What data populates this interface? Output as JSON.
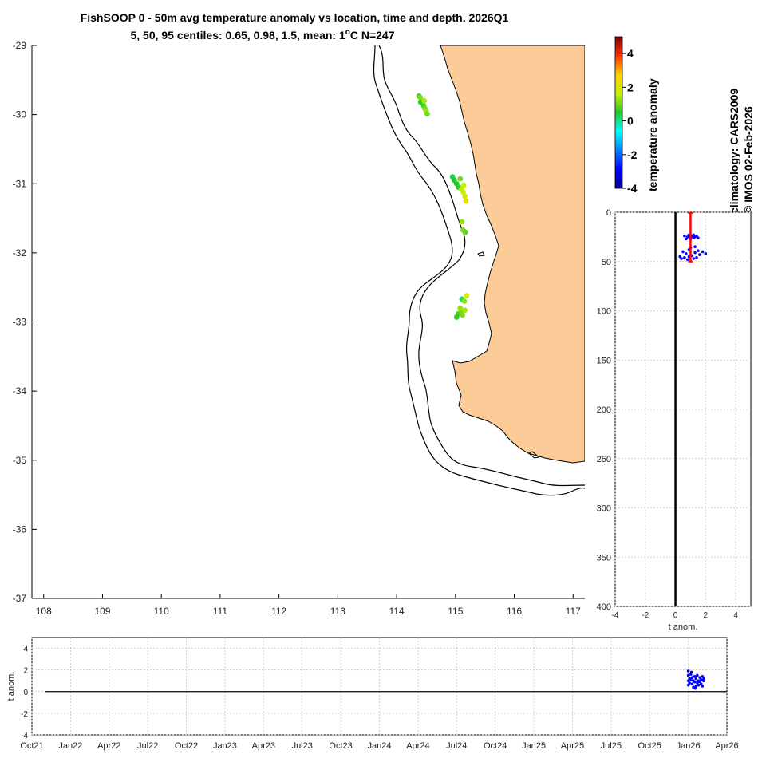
{
  "title": {
    "line1": "FishSOOP 0 - 50m avg temperature anomaly vs location, time and depth. 2026Q1",
    "line2_prefix": "5, 50, 95 centiles: 0.65, 0.98, 1.5, mean: 1",
    "line2_sup": "o",
    "line2_suffix": "C N=247"
  },
  "credits": {
    "climatology": "climatology: CARS2009",
    "copyright": "© IMOS 02-Feb-2026"
  },
  "colors": {
    "land": "#fbcb98",
    "coast": "#000000",
    "points": "#0000ff",
    "mean_line": "#ff0000",
    "grid": "#c8c8c8"
  },
  "chart_data": [
    {
      "type": "scatter",
      "name": "map",
      "xlabel": "",
      "ylabel": "",
      "xlim": [
        107.8,
        117.2
      ],
      "ylim": [
        -37,
        -29
      ],
      "xticks": [
        "108",
        "109",
        "110",
        "111",
        "112",
        "113",
        "114",
        "115",
        "116",
        "117"
      ],
      "yticks": [
        "-29",
        "-30",
        "-31",
        "-32",
        "-33",
        "-34",
        "-35",
        "-36",
        "-37"
      ],
      "points": [
        {
          "lon": 114.38,
          "lat": -29.73,
          "anom": 0.8
        },
        {
          "lon": 114.4,
          "lat": -29.75,
          "anom": 1.0
        },
        {
          "lon": 114.42,
          "lat": -29.79,
          "anom": 1.2
        },
        {
          "lon": 114.44,
          "lat": -29.83,
          "anom": 0.9
        },
        {
          "lon": 114.46,
          "lat": -29.87,
          "anom": 0.7
        },
        {
          "lon": 114.48,
          "lat": -29.91,
          "anom": 1.1
        },
        {
          "lon": 114.5,
          "lat": -29.95,
          "anom": 1.3
        },
        {
          "lon": 114.52,
          "lat": -29.99,
          "anom": 1.0
        },
        {
          "lon": 114.41,
          "lat": -29.82,
          "anom": 0.6
        },
        {
          "lon": 114.47,
          "lat": -29.8,
          "anom": 1.4
        },
        {
          "lon": 114.95,
          "lat": -30.9,
          "anom": 0.3
        },
        {
          "lon": 114.98,
          "lat": -30.95,
          "anom": 0.5
        },
        {
          "lon": 115.02,
          "lat": -31.0,
          "anom": 0.4
        },
        {
          "lon": 115.05,
          "lat": -31.05,
          "anom": 0.6
        },
        {
          "lon": 115.08,
          "lat": -30.93,
          "anom": 1.0
        },
        {
          "lon": 115.1,
          "lat": -31.08,
          "anom": 1.5
        },
        {
          "lon": 115.13,
          "lat": -31.12,
          "anom": 1.8
        },
        {
          "lon": 115.16,
          "lat": -31.18,
          "anom": 2.0
        },
        {
          "lon": 115.18,
          "lat": -31.25,
          "anom": 2.2
        },
        {
          "lon": 115.14,
          "lat": -31.02,
          "anom": 1.6
        },
        {
          "lon": 115.11,
          "lat": -31.55,
          "anom": 1.3
        },
        {
          "lon": 115.13,
          "lat": -31.67,
          "anom": 1.1
        },
        {
          "lon": 115.17,
          "lat": -31.7,
          "anom": 0.9
        },
        {
          "lon": 115.19,
          "lat": -32.62,
          "anom": 1.9
        },
        {
          "lon": 115.11,
          "lat": -32.67,
          "anom": 0.2
        },
        {
          "lon": 115.15,
          "lat": -32.7,
          "anom": 1.2
        },
        {
          "lon": 115.05,
          "lat": -32.88,
          "anom": 0.8
        },
        {
          "lon": 115.1,
          "lat": -32.85,
          "anom": 1.0
        },
        {
          "lon": 115.16,
          "lat": -32.83,
          "anom": 1.4
        },
        {
          "lon": 115.02,
          "lat": -32.93,
          "anom": 0.6
        },
        {
          "lon": 115.12,
          "lat": -32.9,
          "anom": 1.1
        },
        {
          "lon": 115.08,
          "lat": -32.8,
          "anom": 1.3
        }
      ]
    },
    {
      "type": "colorbar",
      "name": "temperature anomaly",
      "label": "temperature anomaly",
      "range": [
        -4,
        5
      ],
      "ticks": [
        "4",
        "2",
        "0",
        "-2",
        "-4"
      ]
    },
    {
      "type": "scatter",
      "name": "depth profile",
      "xlabel": "t anom.",
      "xlim": [
        -4,
        5
      ],
      "ylim": [
        0,
        400
      ],
      "xticks": [
        "-4",
        "-2",
        "0",
        "2",
        "4"
      ],
      "yticks": [
        "0",
        "50",
        "100",
        "150",
        "200",
        "250",
        "300",
        "350",
        "400"
      ],
      "mean_anomaly": 1.0,
      "depth_range": [
        0,
        50
      ],
      "points": [
        {
          "anom": 0.6,
          "depth": 24
        },
        {
          "anom": 0.8,
          "depth": 25
        },
        {
          "anom": 0.9,
          "depth": 23
        },
        {
          "anom": 1.0,
          "depth": 25
        },
        {
          "anom": 1.1,
          "depth": 24
        },
        {
          "anom": 1.2,
          "depth": 26
        },
        {
          "anom": 1.3,
          "depth": 25
        },
        {
          "anom": 1.4,
          "depth": 24
        },
        {
          "anom": 1.5,
          "depth": 26
        },
        {
          "anom": 0.7,
          "depth": 27
        },
        {
          "anom": 1.0,
          "depth": 27
        },
        {
          "anom": 1.2,
          "depth": 23
        },
        {
          "anom": 0.5,
          "depth": 40
        },
        {
          "anom": 0.7,
          "depth": 42
        },
        {
          "anom": 0.9,
          "depth": 38
        },
        {
          "anom": 1.1,
          "depth": 44
        },
        {
          "anom": 1.3,
          "depth": 41
        },
        {
          "anom": 1.5,
          "depth": 39
        },
        {
          "anom": 1.6,
          "depth": 43
        },
        {
          "anom": 1.8,
          "depth": 40
        },
        {
          "anom": 2.0,
          "depth": 42
        },
        {
          "anom": 0.3,
          "depth": 45
        },
        {
          "anom": 0.4,
          "depth": 47
        },
        {
          "anom": 0.6,
          "depth": 46
        },
        {
          "anom": 0.9,
          "depth": 45
        },
        {
          "anom": 1.2,
          "depth": 47
        },
        {
          "anom": 1.4,
          "depth": 46
        },
        {
          "anom": 1.0,
          "depth": 36
        },
        {
          "anom": 1.3,
          "depth": 35
        },
        {
          "anom": 0.8,
          "depth": 48
        }
      ]
    },
    {
      "type": "scatter",
      "name": "time series",
      "ylabel": "t anom.",
      "ylim": [
        -4,
        5
      ],
      "xrange_months": [
        0,
        54
      ],
      "yticks": [
        "4",
        "2",
        "0",
        "-2",
        "-4"
      ],
      "xticks": [
        "Oct21",
        "Jan22",
        "Apr22",
        "Jul22",
        "Oct22",
        "Jan23",
        "Apr23",
        "Jul23",
        "Oct23",
        "Jan24",
        "Apr24",
        "Jul24",
        "Oct24",
        "Jan25",
        "Apr25",
        "Jul25",
        "Oct25",
        "Jan26",
        "Apr26"
      ],
      "points": [
        {
          "month": 51.0,
          "anom": 1.9
        },
        {
          "month": 51.0,
          "anom": 1.5
        },
        {
          "month": 51.0,
          "anom": 1.0
        },
        {
          "month": 51.0,
          "anom": 0.6
        },
        {
          "month": 51.1,
          "anom": 1.2
        },
        {
          "month": 51.1,
          "anom": 0.8
        },
        {
          "month": 51.2,
          "anom": 1.6
        },
        {
          "month": 51.2,
          "anom": 1.1
        },
        {
          "month": 51.3,
          "anom": 0.7
        },
        {
          "month": 51.3,
          "anom": 1.3
        },
        {
          "month": 51.4,
          "anom": 0.4
        },
        {
          "month": 51.4,
          "anom": 1.0
        },
        {
          "month": 51.5,
          "anom": 1.4
        },
        {
          "month": 51.5,
          "anom": 0.9
        },
        {
          "month": 51.6,
          "anom": 0.5
        },
        {
          "month": 51.6,
          "anom": 1.2
        },
        {
          "month": 51.7,
          "anom": 0.8
        },
        {
          "month": 51.7,
          "anom": 1.5
        },
        {
          "month": 51.8,
          "anom": 1.0
        },
        {
          "month": 51.8,
          "anom": 0.6
        },
        {
          "month": 51.9,
          "anom": 1.3
        },
        {
          "month": 51.9,
          "anom": 0.9
        },
        {
          "month": 52.0,
          "anom": 1.1
        },
        {
          "month": 52.0,
          "anom": 0.7
        },
        {
          "month": 52.1,
          "anom": 1.4
        },
        {
          "month": 52.1,
          "anom": 0.5
        },
        {
          "month": 52.2,
          "anom": 1.0
        },
        {
          "month": 52.2,
          "anom": 1.2
        },
        {
          "month": 51.55,
          "anom": 0.3
        },
        {
          "month": 51.25,
          "anom": 1.8
        }
      ]
    }
  ]
}
